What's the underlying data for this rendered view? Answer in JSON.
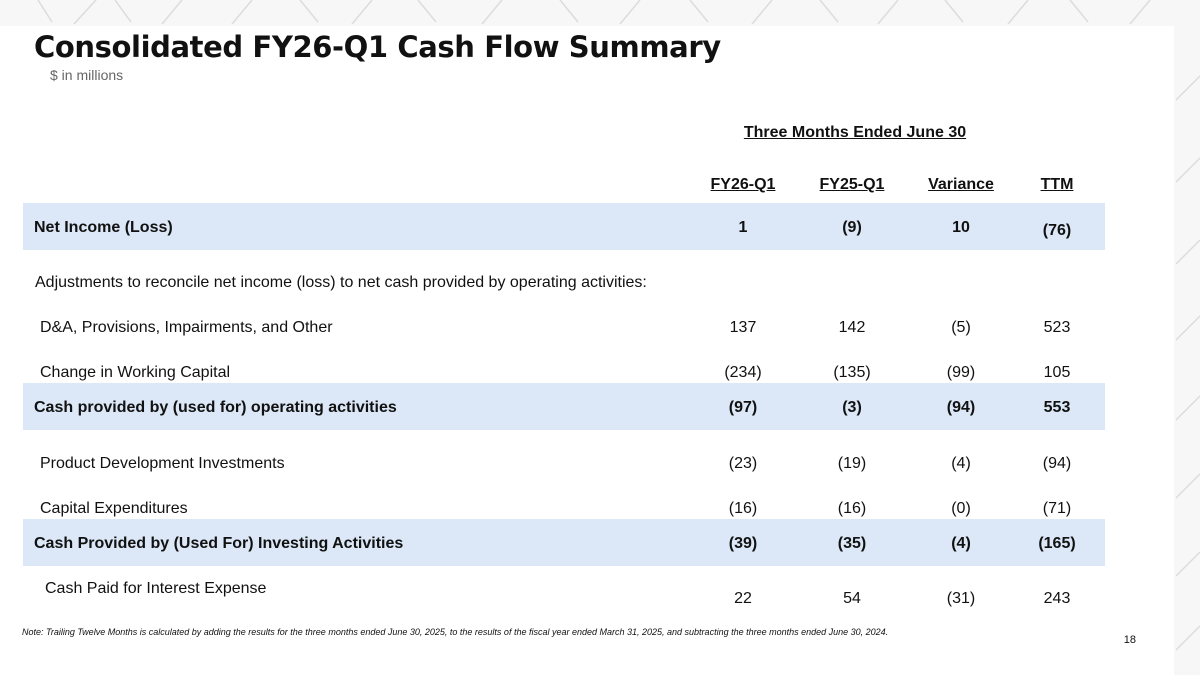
{
  "header": {
    "title": "Consolidated FY26-Q1 Cash Flow Summary",
    "subtitle": "$ in millions"
  },
  "table": {
    "period_header": "Three Months Ended June 30",
    "columns": [
      "FY26-Q1",
      "FY25-Q1",
      "Variance",
      "TTM"
    ],
    "adjustments_label": "Adjustments to reconcile net income (loss) to net cash provided by operating activities:",
    "rows": [
      {
        "label": "Net Income (Loss)",
        "values": [
          "1",
          "(9)",
          "10",
          "(76)"
        ]
      },
      {
        "label": "D&A, Provisions, Impairments, and Other",
        "values": [
          "137",
          "142",
          "(5)",
          "523"
        ]
      },
      {
        "label": "Change in Working Capital",
        "values": [
          "(234)",
          "(135)",
          "(99)",
          "105"
        ]
      },
      {
        "label": "Cash provided by (used for) operating activities",
        "values": [
          "(97)",
          "(3)",
          "(94)",
          "553"
        ]
      },
      {
        "label": "Product Development Investments",
        "values": [
          "(23)",
          "(19)",
          "(4)",
          "(94)"
        ]
      },
      {
        "label": "Capital Expenditures",
        "values": [
          "(16)",
          "(16)",
          "(0)",
          "(71)"
        ]
      },
      {
        "label": "Cash Provided by (Used For) Investing Activities",
        "values": [
          "(39)",
          "(35)",
          "(4)",
          "(165)"
        ]
      },
      {
        "label": "Cash Paid for Interest Expense",
        "values": [
          "22",
          "54",
          "(31)",
          "243"
        ]
      }
    ]
  },
  "footer": {
    "note": "Note: Trailing Twelve Months is calculated by adding the results for the three months ended June 30, 2025, to the results of the fiscal year ended March 31, 2025, and subtracting the three months ended June 30, 2024.",
    "page_number": "18"
  },
  "colors": {
    "band": "#dce8f7",
    "decoration": "#dcdcdc"
  }
}
